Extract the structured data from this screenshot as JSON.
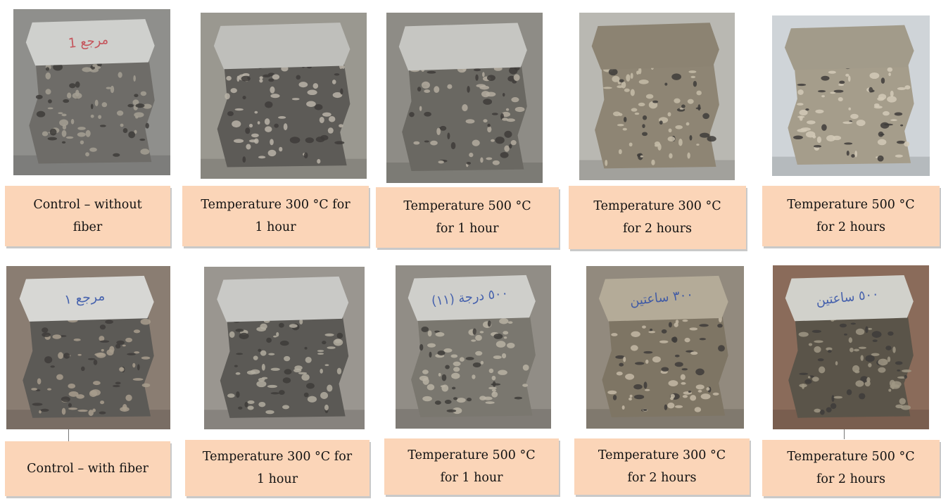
{
  "rows": [
    {
      "captions": [
        "Control – without\nfiber",
        "Temperature 300 °C for\n1 hour",
        "Temperature 500 °C\nfor 1 hour",
        "Temperature 300 °C\nfor 2 hours",
        "Temperature 500 °C\nfor 2 hours"
      ],
      "photos": [
        {
          "subject": "fractured concrete cube",
          "bg": "#8f8f8c",
          "top": "#cfd0cd",
          "body": "#6e6c68",
          "speck": "#a59f93",
          "marking": "1 مرجع"
        },
        {
          "subject": "fractured concrete cube",
          "bg": "#9a9890",
          "top": "#bfbfbb",
          "body": "#5d5b57",
          "speck": "#b8b3a7",
          "marking": ""
        },
        {
          "subject": "fractured concrete cube",
          "bg": "#8e8c86",
          "top": "#c6c6c2",
          "body": "#6a6862",
          "speck": "#b3ac9f",
          "marking": ""
        },
        {
          "subject": "fractured concrete cube",
          "bg": "#b9b8b2",
          "top": "#8c8372",
          "body": "#8e8574",
          "speck": "#c6bca8",
          "marking": ""
        },
        {
          "subject": "fractured concrete cube",
          "bg": "#cfd4d8",
          "top": "#a29b8a",
          "body": "#a59d8b",
          "speck": "#d2cab7",
          "marking": ""
        }
      ]
    },
    {
      "captions": [
        "Control – with fiber",
        "Temperature 300 °C for\n1 hour",
        "Temperature 500 °C\nfor 1 hour",
        "Temperature 300 °C\nfor 2 hours",
        "Temperature 500 °C\nfor 2 hours"
      ],
      "photos": [
        {
          "subject": "fractured concrete cube",
          "bg": "#8a7d72",
          "top": "#d7d7d4",
          "body": "#5c5a56",
          "speck": "#a79c8c",
          "marking": "مرجع ١"
        },
        {
          "subject": "fractured concrete cube",
          "bg": "#9a9690",
          "top": "#c9c9c6",
          "body": "#5b5955",
          "speck": "#b2ab9f",
          "marking": ""
        },
        {
          "subject": "fractured concrete cube",
          "bg": "#918d86",
          "top": "#cfcfcb",
          "body": "#7a776f",
          "speck": "#b8b1a3",
          "marking": "(١١) ٥٠٠ درجة"
        },
        {
          "subject": "fractured concrete cube",
          "bg": "#928a7e",
          "top": "#b4ab98",
          "body": "#7e7564",
          "speck": "#c3b9a4",
          "marking": "٣٠٠ ساعتين"
        },
        {
          "subject": "fractured concrete cube",
          "bg": "#8a6b5a",
          "top": "#d1d1cb",
          "body": "#5a5449",
          "speck": "#9f9684",
          "marking": "٥٠٠ ساعتين"
        }
      ]
    }
  ]
}
